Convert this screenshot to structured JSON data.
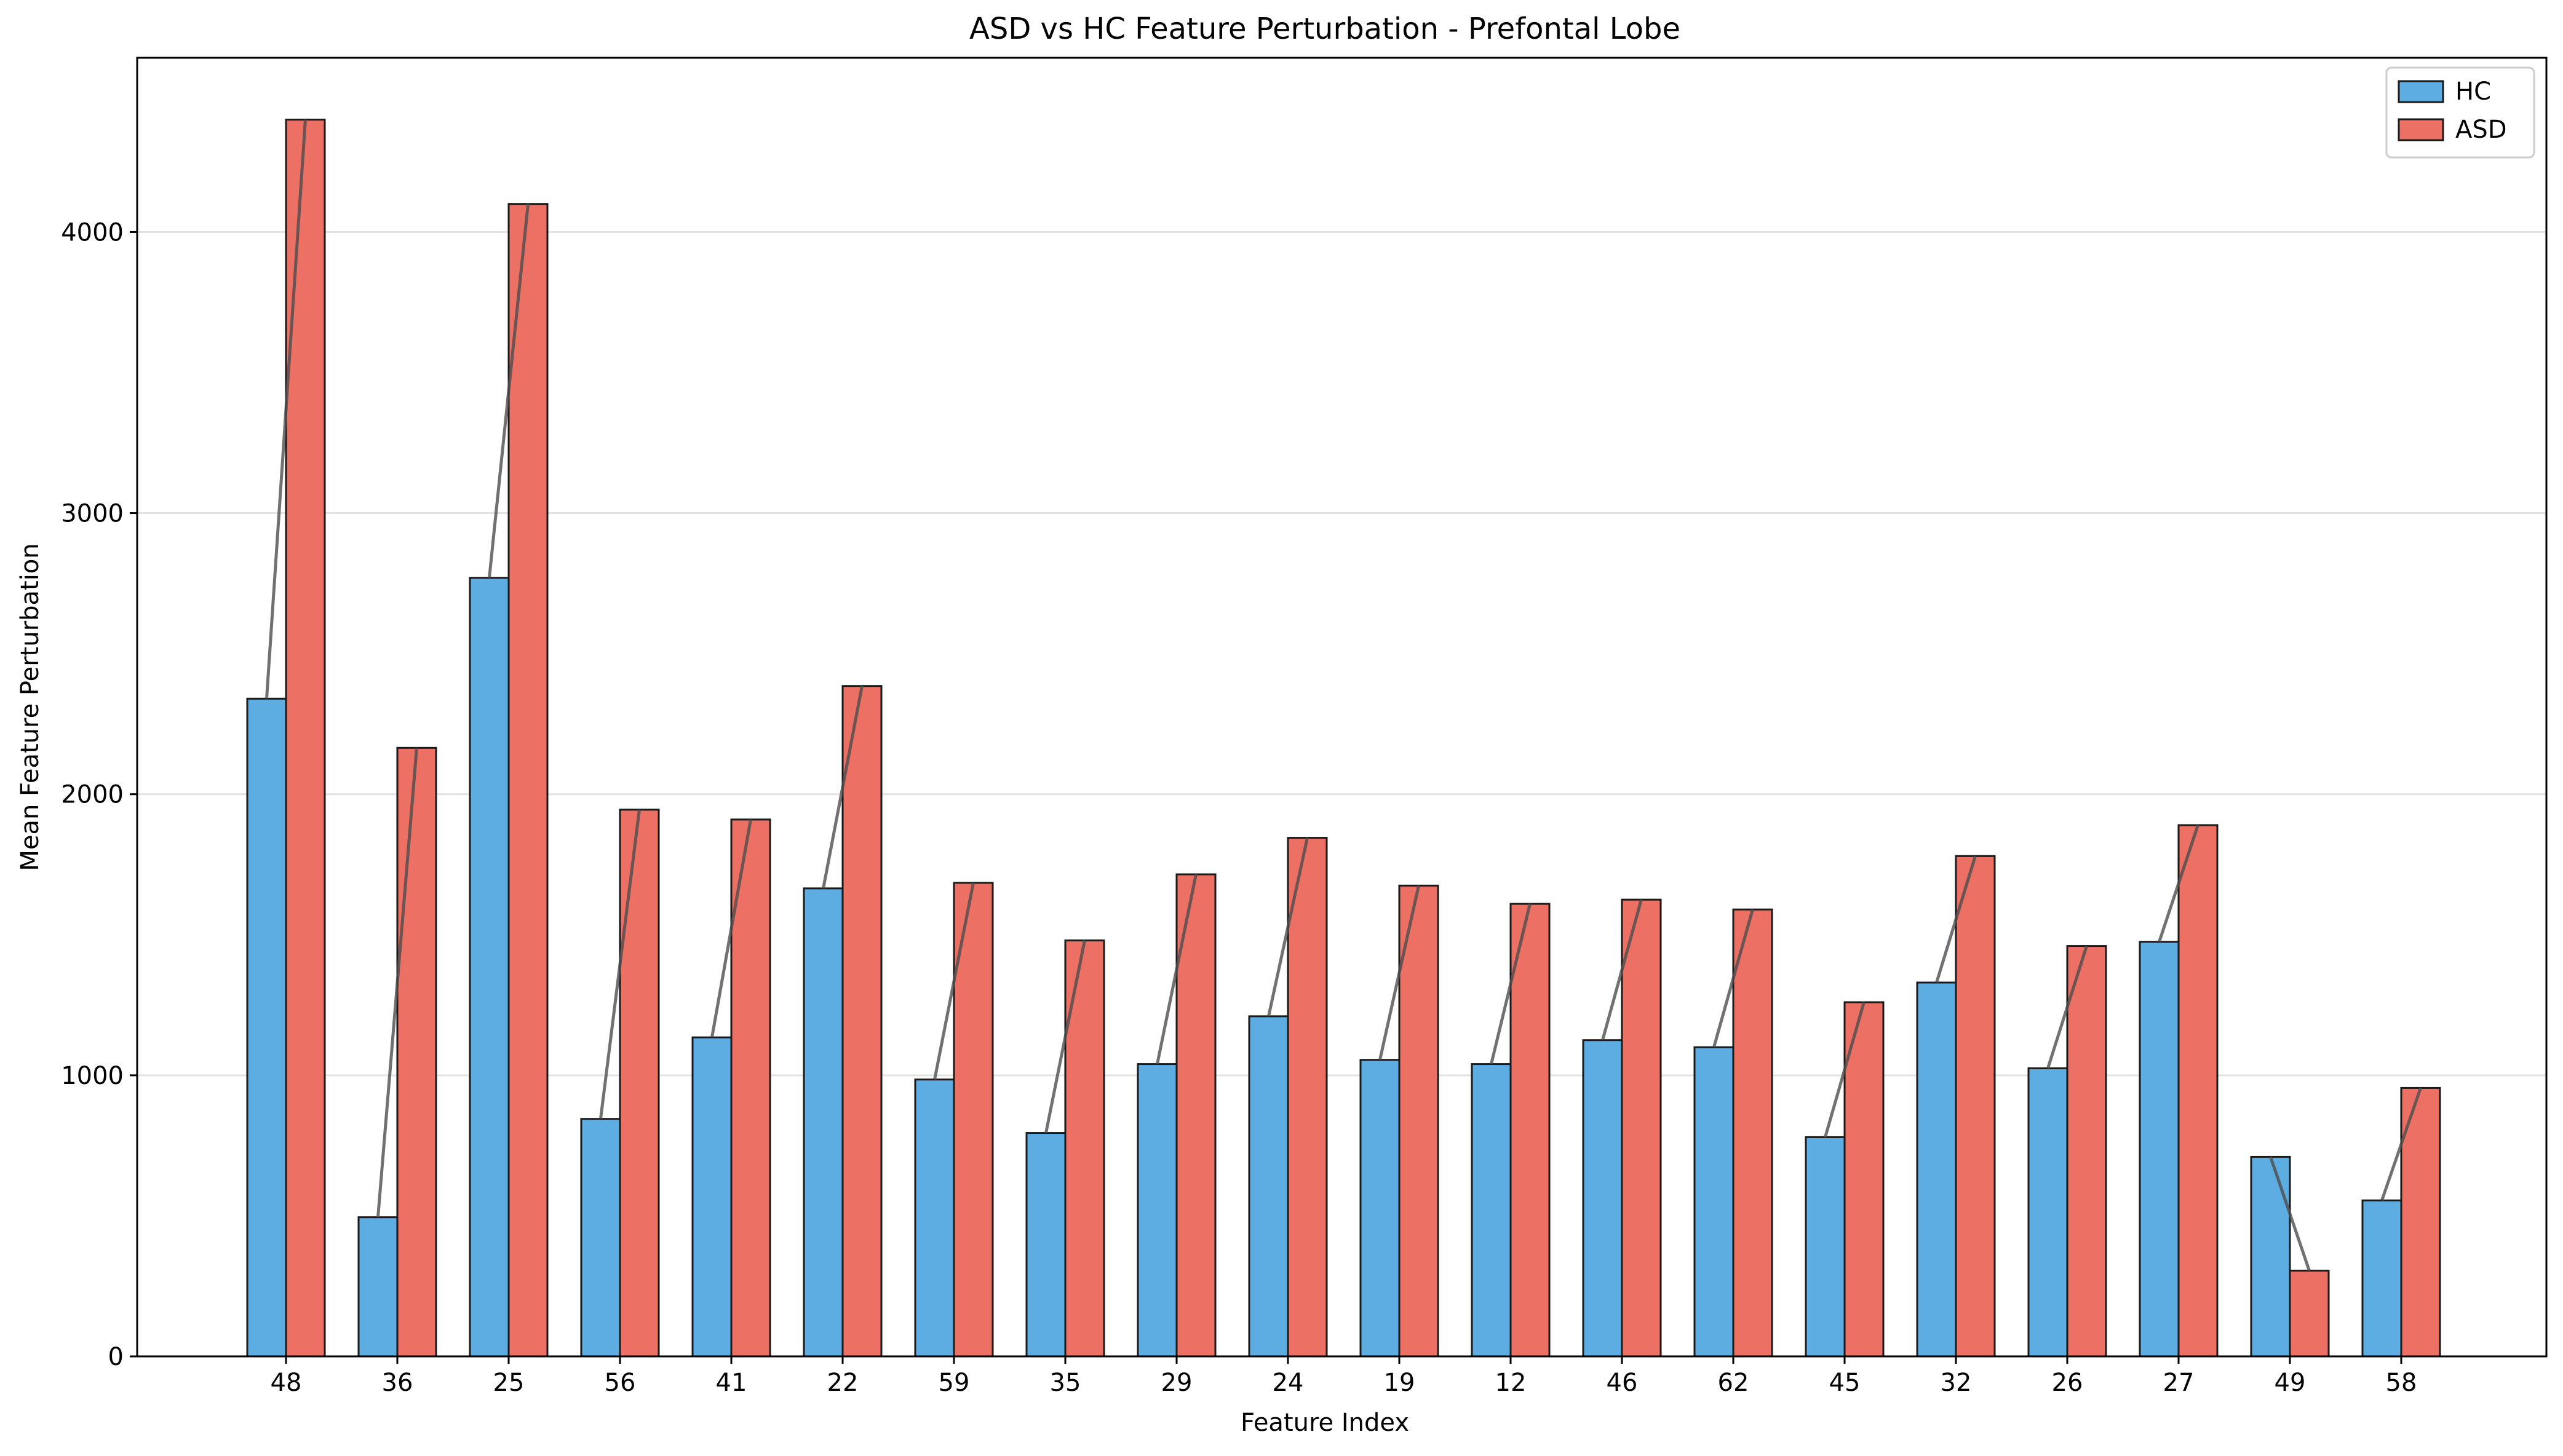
{
  "chart_data": {
    "type": "bar",
    "title": "ASD vs HC Feature Perturbation - Prefontal Lobe",
    "xlabel": "Feature Index",
    "ylabel": "Mean Feature Perturbation",
    "categories": [
      "48",
      "36",
      "25",
      "56",
      "41",
      "22",
      "59",
      "35",
      "29",
      "24",
      "19",
      "12",
      "46",
      "62",
      "45",
      "32",
      "26",
      "27",
      "49",
      "58"
    ],
    "series": [
      {
        "name": "HC",
        "color": "#5DADE2",
        "values": [
          2340,
          495,
          2770,
          845,
          1135,
          1665,
          985,
          795,
          1040,
          1210,
          1055,
          1040,
          1125,
          1100,
          780,
          1330,
          1025,
          1475,
          710,
          555
        ]
      },
      {
        "name": "ASD",
        "color": "#EC7063",
        "values": [
          4400,
          2165,
          4100,
          1945,
          1910,
          2385,
          1685,
          1480,
          1715,
          1845,
          1675,
          1610,
          1625,
          1590,
          1260,
          1780,
          1460,
          1890,
          305,
          955
        ]
      }
    ],
    "ylim": [
      0,
      4620
    ],
    "yticks": [
      0,
      1000,
      2000,
      3000,
      4000
    ],
    "grid": "y",
    "legend_position": "top-right",
    "connector_color": "#4d4d4d"
  }
}
